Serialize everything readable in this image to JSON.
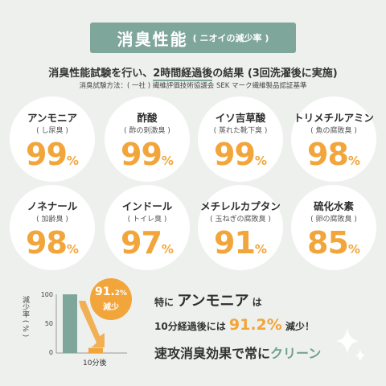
{
  "header": {
    "title": "消臭性能",
    "subtitle": "( ニオイの減少率 )"
  },
  "headline": {
    "before": "消臭性能試験を行い、",
    "underlined": "2時間経過後",
    "after": "の結果 (3回洗濯後に実施)"
  },
  "method": "消臭試験方法：( 一社 ) 繊維評価技術協議会 SEK マーク繊維製品認証基準",
  "results": [
    {
      "name": "アンモニア",
      "smell": "( し尿臭 )",
      "value": "99",
      "unit": "%"
    },
    {
      "name": "酢酸",
      "smell": "( 酢の刺激臭 )",
      "value": "99",
      "unit": "%"
    },
    {
      "name": "イソ吉草酸",
      "smell": "( 蒸れた靴下臭 )",
      "value": "99",
      "unit": "%"
    },
    {
      "name": "トリメチルアミン",
      "smell": "( 魚の腐敗臭 )",
      "value": "98",
      "unit": "%"
    },
    {
      "name": "ノネナール",
      "smell": "( 加齢臭 )",
      "value": "98",
      "unit": "%"
    },
    {
      "name": "インドール",
      "smell": "( トイレ臭 )",
      "value": "97",
      "unit": "%"
    },
    {
      "name": "メチレルカプタン",
      "smell": "( 玉ねぎの腐敗臭 )",
      "value": "91",
      "unit": "%"
    },
    {
      "name": "硫化水素",
      "smell": "( 卵の腐敗臭 )",
      "value": "85",
      "unit": "%"
    }
  ],
  "chart_data": {
    "type": "bar",
    "ylabel": "減少率 ( % )",
    "yticks": [
      "100",
      "50",
      "0"
    ],
    "ylim": [
      0,
      100
    ],
    "categories": [
      "",
      "10分後"
    ],
    "values": [
      100,
      8.8
    ],
    "callout": {
      "value": "91.",
      "value_small": "2%",
      "label": "減少"
    },
    "colors": {
      "before": "#7fa69b",
      "after": "#f2a53a"
    }
  },
  "summary": {
    "l1_a": "特に",
    "l1_b": "アンモニア",
    "l1_c": "は",
    "l2_a": "10分経過後には",
    "l2_b": "91.2%",
    "l2_c": "減少！",
    "l3_a": "速攻消臭効果で常に",
    "l3_b": "クリーン"
  },
  "colors": {
    "accent": "#7fa69b",
    "highlight": "#f2a53a",
    "background": "#eef0ee"
  }
}
